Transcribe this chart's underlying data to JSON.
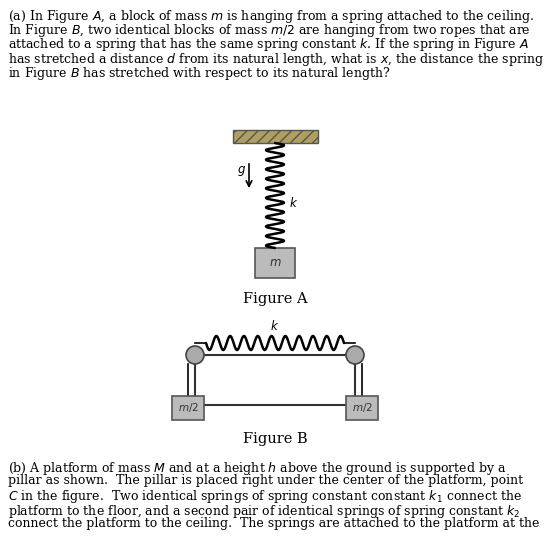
{
  "bg_color": "#ffffff",
  "text_color": "#000000",
  "figure_a_label": "Figure A",
  "figure_b_label": "Figure B",
  "label_g": "$g$",
  "label_k_a": "$k$",
  "label_m": "$m$",
  "label_m2": "$m/2$",
  "label_k_b": "$k$",
  "ceiling_hatch_color": "#b0a060",
  "spring_color": "#000000",
  "block_face": "#bbbbbb",
  "block_edge": "#555555",
  "pulley_face": "#aaaaaa",
  "pulley_edge": "#444444",
  "frame_edge": "#333333",
  "para_a_lines": [
    "(a) In Figure $A$, a block of mass $m$ is hanging from a spring attached to the ceiling.",
    "In Figure $B$, two identical blocks of mass $m/2$ are hanging from two ropes that are",
    "attached to a spring that has the same spring constant $k$. If the spring in Figure $A$",
    "has stretched a distance $d$ from its natural length, what is $x$, the distance the spring",
    "in Figure $B$ has stretched with respect to its natural length?"
  ],
  "para_b_lines": [
    "(b) A platform of mass $M$ and at a height $h$ above the ground is supported by a",
    "pillar as shown.  The pillar is placed right under the center of the platform, point",
    "$C$ in the figure.  Two identical springs of spring constant constant $k_1$ connect the",
    "platform to the floor, and a second pair of identical springs of spring constant $k_2$",
    "connect the platform to the ceiling.  The springs are attached to the platform at the"
  ]
}
